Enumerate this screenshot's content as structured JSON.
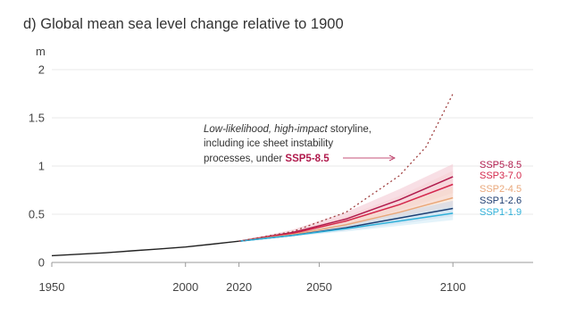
{
  "chart_data": {
    "type": "line",
    "title": "d) Global mean sea level change relative to 1900",
    "ylabel": "m",
    "xlim": [
      1950,
      2130
    ],
    "ylim": [
      0,
      2
    ],
    "x_ticks": [
      1950,
      2000,
      2020,
      2050,
      2100
    ],
    "y_ticks": [
      0,
      0.5,
      1,
      1.5,
      2
    ],
    "y_tick_labels": [
      "0",
      "0.5",
      "1",
      "1.5",
      "2"
    ],
    "grid": "horizontal",
    "historical": {
      "x": [
        1950,
        1960,
        1970,
        1980,
        1990,
        2000,
        2010,
        2020
      ],
      "y": [
        0.07,
        0.085,
        0.1,
        0.12,
        0.14,
        0.16,
        0.19,
        0.22
      ]
    },
    "series": [
      {
        "name": "SSP5-8.5",
        "color": "#b01a4c",
        "band_color": "#f2c4cf",
        "x": [
          2020,
          2040,
          2060,
          2080,
          2100
        ],
        "y": [
          0.22,
          0.31,
          0.45,
          0.65,
          0.89
        ],
        "low": [
          0.22,
          0.29,
          0.39,
          0.54,
          0.72
        ],
        "high": [
          0.22,
          0.34,
          0.52,
          0.76,
          1.02
        ]
      },
      {
        "name": "SSP3-7.0",
        "color": "#d4274b",
        "band_color": "#f6d0d6",
        "x": [
          2020,
          2040,
          2060,
          2080,
          2100
        ],
        "y": [
          0.22,
          0.3,
          0.43,
          0.6,
          0.81
        ],
        "low": [
          0.22,
          0.29,
          0.38,
          0.52,
          0.67
        ],
        "high": [
          0.22,
          0.32,
          0.48,
          0.69,
          0.95
        ]
      },
      {
        "name": "SSP2-4.5",
        "color": "#e9a77a",
        "band_color": "#f5ddcb",
        "x": [
          2020,
          2040,
          2060,
          2080,
          2100
        ],
        "y": [
          0.22,
          0.29,
          0.39,
          0.52,
          0.67
        ],
        "low": [
          0.22,
          0.28,
          0.35,
          0.45,
          0.56
        ],
        "high": [
          0.22,
          0.31,
          0.44,
          0.6,
          0.78
        ]
      },
      {
        "name": "SSP1-2.6",
        "color": "#1f3f73",
        "band_color": "#c9d4e6",
        "x": [
          2020,
          2040,
          2060,
          2080,
          2100
        ],
        "y": [
          0.22,
          0.28,
          0.36,
          0.46,
          0.56
        ],
        "low": [
          0.22,
          0.27,
          0.33,
          0.4,
          0.48
        ],
        "high": [
          0.22,
          0.3,
          0.4,
          0.52,
          0.64
        ]
      },
      {
        "name": "SSP1-1.9",
        "color": "#2fb0d9",
        "band_color": "#cdeaf5",
        "x": [
          2020,
          2040,
          2060,
          2080,
          2100
        ],
        "y": [
          0.22,
          0.28,
          0.35,
          0.43,
          0.51
        ],
        "low": [
          0.22,
          0.27,
          0.32,
          0.38,
          0.44
        ],
        "high": [
          0.22,
          0.29,
          0.38,
          0.48,
          0.58
        ]
      }
    ],
    "low_likelihood": {
      "color": "#a04040",
      "x": [
        2020,
        2040,
        2060,
        2080,
        2090,
        2100
      ],
      "y": [
        0.22,
        0.32,
        0.52,
        0.9,
        1.2,
        1.75
      ]
    },
    "annotation": {
      "line1_italic": "Low-likelihood, high-impact",
      "line1_rest": " storyline,",
      "line2": "including ice sheet instability",
      "line3_prefix": "processes, under ",
      "line3_highlight": "SSP5-8.5",
      "highlight_color": "#b01a4c"
    }
  }
}
